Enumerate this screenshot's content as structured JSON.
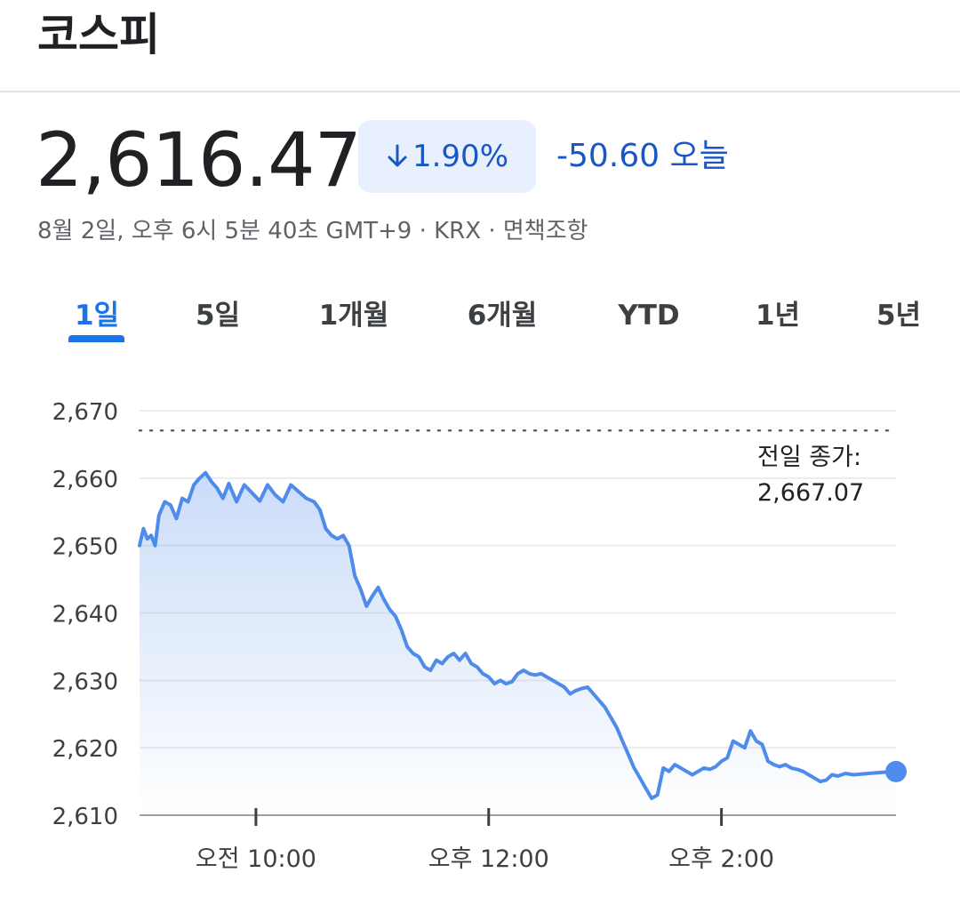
{
  "header": {
    "title": "코스피"
  },
  "quote": {
    "price": "2,616.47",
    "change_percent": "1.90%",
    "change_direction_icon": "arrow-down-icon",
    "change_text": "-50.60 오늘",
    "meta": "8월 2일, 오후 6시 5분 40초 GMT+9 · KRX · 면책조항",
    "accent_color": "#1a56c4",
    "badge_color": "#e8f0fe"
  },
  "tabs": [
    {
      "label": "1일",
      "active": true
    },
    {
      "label": "5일",
      "active": false
    },
    {
      "label": "1개월",
      "active": false
    },
    {
      "label": "6개월",
      "active": false
    },
    {
      "label": "YTD",
      "active": false
    },
    {
      "label": "1년",
      "active": false
    },
    {
      "label": "5년",
      "active": false
    }
  ],
  "chart_data": {
    "type": "area",
    "title": "",
    "xlabel": "",
    "ylabel": "",
    "line_color": "#4f8bea",
    "y_ticks": [
      2610,
      2620,
      2630,
      2640,
      2650,
      2660,
      2670
    ],
    "y_tick_labels": [
      "2,610",
      "2,620",
      "2,630",
      "2,640",
      "2,650",
      "2,660",
      "2,670"
    ],
    "ylim": [
      2610,
      2670
    ],
    "x_ticks": [
      "09:00+60",
      "12:00",
      "14:00"
    ],
    "x_tick_labels": [
      "오전 10:00",
      "오후 12:00",
      "오후 2:00"
    ],
    "x_range": [
      "09:00",
      "15:30"
    ],
    "previous_close": {
      "label": "전일 종가:",
      "value": 2667.07,
      "value_text": "2,667.07"
    },
    "series": [
      {
        "values": [
          [
            "09:00",
            2650.0
          ],
          [
            "09:02",
            2652.5
          ],
          [
            "09:04",
            2651.0
          ],
          [
            "09:06",
            2651.5
          ],
          [
            "09:08",
            2650.0
          ],
          [
            "09:10",
            2654.5
          ],
          [
            "09:13",
            2656.5
          ],
          [
            "09:16",
            2656.0
          ],
          [
            "09:19",
            2654.0
          ],
          [
            "09:22",
            2657.0
          ],
          [
            "09:25",
            2656.5
          ],
          [
            "09:28",
            2659.0
          ],
          [
            "09:31",
            2660.0
          ],
          [
            "09:34",
            2660.8
          ],
          [
            "09:37",
            2659.5
          ],
          [
            "09:40",
            2658.5
          ],
          [
            "09:43",
            2657.0
          ],
          [
            "09:46",
            2659.2
          ],
          [
            "09:50",
            2656.5
          ],
          [
            "09:54",
            2659.0
          ],
          [
            "09:58",
            2657.8
          ],
          [
            "10:02",
            2656.6
          ],
          [
            "10:06",
            2659.0
          ],
          [
            "10:10",
            2657.5
          ],
          [
            "10:14",
            2656.5
          ],
          [
            "10:18",
            2659.0
          ],
          [
            "10:22",
            2658.0
          ],
          [
            "10:26",
            2657.0
          ],
          [
            "10:30",
            2656.5
          ],
          [
            "10:33",
            2655.3
          ],
          [
            "10:36",
            2652.5
          ],
          [
            "10:39",
            2651.5
          ],
          [
            "10:42",
            2651.0
          ],
          [
            "10:45",
            2651.5
          ],
          [
            "10:48",
            2650.0
          ],
          [
            "10:51",
            2645.5
          ],
          [
            "10:54",
            2643.5
          ],
          [
            "10:57",
            2641.0
          ],
          [
            "11:00",
            2642.5
          ],
          [
            "11:03",
            2643.8
          ],
          [
            "11:06",
            2642.0
          ],
          [
            "11:09",
            2640.5
          ],
          [
            "11:12",
            2639.5
          ],
          [
            "11:15",
            2637.5
          ],
          [
            "11:18",
            2635.0
          ],
          [
            "11:21",
            2634.0
          ],
          [
            "11:24",
            2633.5
          ],
          [
            "11:27",
            2632.0
          ],
          [
            "11:30",
            2631.5
          ],
          [
            "11:33",
            2633.0
          ],
          [
            "11:36",
            2632.5
          ],
          [
            "11:39",
            2633.5
          ],
          [
            "11:42",
            2634.0
          ],
          [
            "11:45",
            2633.0
          ],
          [
            "11:48",
            2634.0
          ],
          [
            "11:51",
            2632.5
          ],
          [
            "11:54",
            2632.0
          ],
          [
            "11:57",
            2631.0
          ],
          [
            "12:00",
            2630.5
          ],
          [
            "12:03",
            2629.5
          ],
          [
            "12:06",
            2630.0
          ],
          [
            "12:09",
            2629.5
          ],
          [
            "12:12",
            2629.8
          ],
          [
            "12:15",
            2631.0
          ],
          [
            "12:18",
            2631.5
          ],
          [
            "12:21",
            2631.0
          ],
          [
            "12:24",
            2630.8
          ],
          [
            "12:27",
            2631.0
          ],
          [
            "12:30",
            2630.5
          ],
          [
            "12:33",
            2630.0
          ],
          [
            "12:36",
            2629.5
          ],
          [
            "12:39",
            2629.0
          ],
          [
            "12:42",
            2628.0
          ],
          [
            "12:45",
            2628.5
          ],
          [
            "12:48",
            2628.8
          ],
          [
            "12:51",
            2629.0
          ],
          [
            "12:54",
            2628.0
          ],
          [
            "12:57",
            2627.0
          ],
          [
            "13:00",
            2626.0
          ],
          [
            "13:03",
            2624.5
          ],
          [
            "13:06",
            2623.0
          ],
          [
            "13:09",
            2621.0
          ],
          [
            "13:12",
            2619.0
          ],
          [
            "13:15",
            2617.0
          ],
          [
            "13:18",
            2615.5
          ],
          [
            "13:21",
            2614.0
          ],
          [
            "13:24",
            2612.5
          ],
          [
            "13:27",
            2613.0
          ],
          [
            "13:30",
            2617.0
          ],
          [
            "13:33",
            2616.5
          ],
          [
            "13:36",
            2617.5
          ],
          [
            "13:39",
            2617.0
          ],
          [
            "13:42",
            2616.5
          ],
          [
            "13:45",
            2616.0
          ],
          [
            "13:48",
            2616.5
          ],
          [
            "13:51",
            2617.0
          ],
          [
            "13:54",
            2616.8
          ],
          [
            "13:57",
            2617.2
          ],
          [
            "14:00",
            2618.0
          ],
          [
            "14:03",
            2618.5
          ],
          [
            "14:06",
            2621.0
          ],
          [
            "14:09",
            2620.5
          ],
          [
            "14:12",
            2620.0
          ],
          [
            "14:15",
            2622.5
          ],
          [
            "14:18",
            2621.0
          ],
          [
            "14:21",
            2620.5
          ],
          [
            "14:24",
            2618.0
          ],
          [
            "14:27",
            2617.5
          ],
          [
            "14:30",
            2617.2
          ],
          [
            "14:33",
            2617.5
          ],
          [
            "14:36",
            2617.0
          ],
          [
            "14:39",
            2616.8
          ],
          [
            "14:42",
            2616.5
          ],
          [
            "14:45",
            2616.0
          ],
          [
            "14:48",
            2615.5
          ],
          [
            "14:51",
            2615.0
          ],
          [
            "14:54",
            2615.2
          ],
          [
            "14:57",
            2616.0
          ],
          [
            "15:00",
            2615.8
          ],
          [
            "15:04",
            2616.2
          ],
          [
            "15:08",
            2616.0
          ],
          [
            "15:12",
            2616.1
          ],
          [
            "15:16",
            2616.2
          ],
          [
            "15:20",
            2616.3
          ],
          [
            "15:25",
            2616.4
          ],
          [
            "15:30",
            2616.47
          ]
        ]
      }
    ]
  }
}
